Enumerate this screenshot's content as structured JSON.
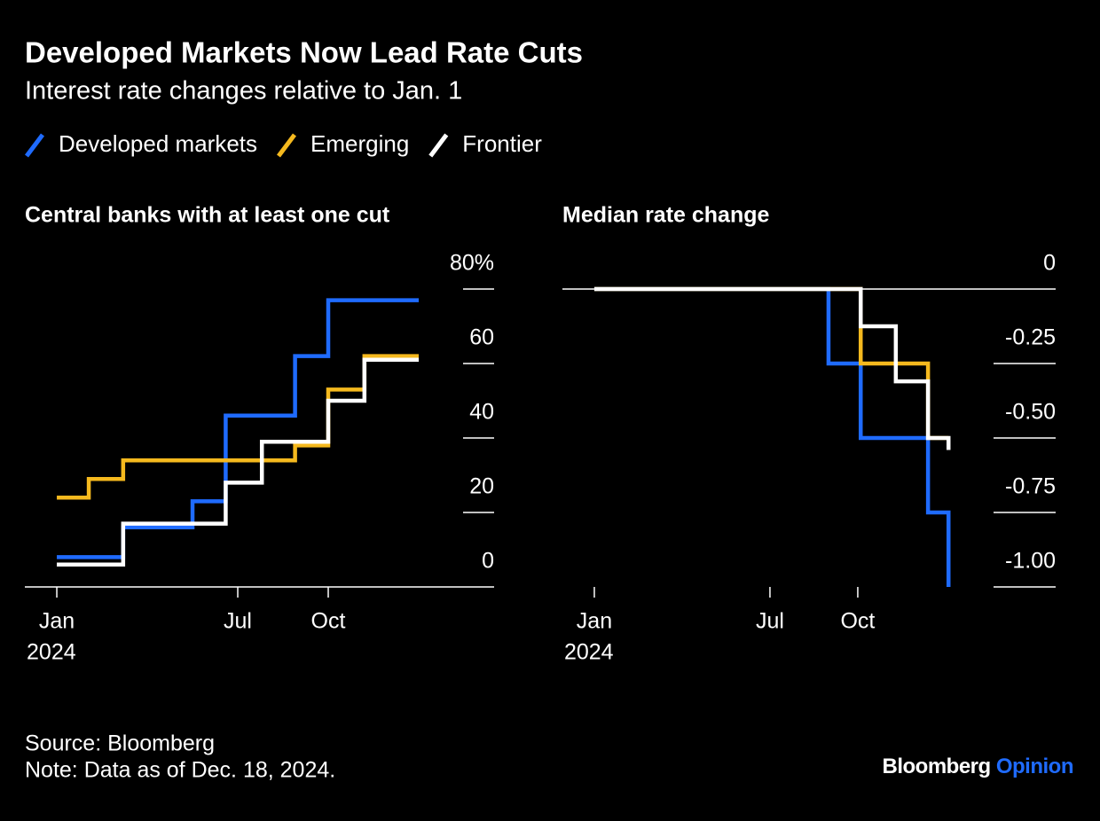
{
  "title": "Developed Markets Now Lead Rate Cuts",
  "subtitle": "Interest rate changes relative to Jan. 1",
  "source": "Source: Bloomberg",
  "note": "Note: Data as of Dec. 18, 2024.",
  "logo": [
    "Bloomberg",
    "Opinion"
  ],
  "chart_data": [
    {
      "type": "line",
      "step": "post",
      "title": "Central banks with at least one cut",
      "x": [
        0,
        1.06,
        2.2,
        4.5,
        5.6,
        6.8,
        7.9,
        9.0,
        10.2,
        12.0
      ],
      "series": [
        {
          "name": "Developed markets",
          "color": "#1f6bff",
          "values": [
            8,
            8,
            16,
            23,
            46,
            46,
            62,
            77,
            77,
            77
          ]
        },
        {
          "name": "Emerging",
          "color": "#f5b91e",
          "values": [
            24,
            29,
            34,
            34,
            34,
            34,
            38,
            53,
            62,
            62
          ]
        },
        {
          "name": "Frontier",
          "color": "#ffffff",
          "values": [
            6,
            6,
            17,
            17,
            28,
            39,
            39,
            50,
            61,
            61
          ]
        }
      ],
      "xlim": [
        -1.06,
        14.5
      ],
      "xticks": [
        {
          "value": 0,
          "label": "Jan"
        },
        {
          "value": 6,
          "label": "Jul"
        },
        {
          "value": 9,
          "label": "Oct"
        }
      ],
      "x_sublabel": "2024",
      "ylim": [
        0,
        80
      ],
      "yticks": [
        0,
        20,
        40,
        60,
        {
          "value": 80,
          "label": "80%"
        }
      ]
    },
    {
      "type": "line",
      "step": "post",
      "title": "Median rate change",
      "x": [
        0,
        8.0,
        9.1,
        10.3,
        11.4,
        12.1
      ],
      "series": [
        {
          "name": "Developed markets",
          "color": "#1f6bff",
          "values": [
            0,
            -0.25,
            -0.5,
            -0.5,
            -0.75,
            -1.0
          ]
        },
        {
          "name": "Emerging",
          "color": "#f5b91e",
          "values": [
            0,
            0,
            -0.25,
            -0.25,
            -0.5,
            -0.5
          ]
        },
        {
          "name": "Frontier",
          "color": "#ffffff",
          "values": [
            0,
            0,
            -0.125,
            -0.31,
            -0.5,
            -0.54
          ]
        }
      ],
      "xlim": [
        -1.09,
        15.76
      ],
      "xticks": [
        {
          "value": 0,
          "label": "Jan"
        },
        {
          "value": 6,
          "label": "Jul"
        },
        {
          "value": 9,
          "label": "Oct"
        }
      ],
      "x_sublabel": "2024",
      "ylim": [
        -1,
        0
      ],
      "yticks": [
        {
          "value": -1,
          "label": "-1.00"
        },
        -0.75,
        {
          "value": -0.5,
          "label": "-0.50"
        },
        -0.25,
        0
      ]
    }
  ]
}
